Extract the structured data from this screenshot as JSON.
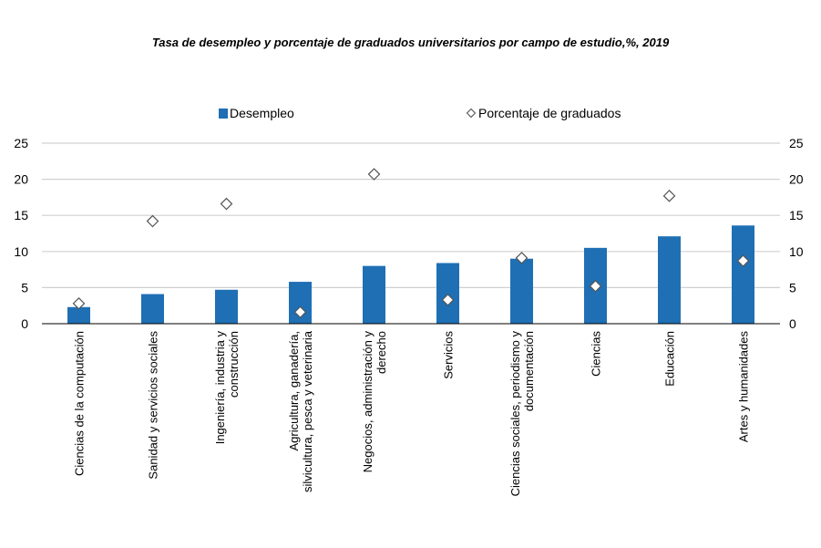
{
  "chart_data": {
    "type": "bar",
    "title": "Tasa de desempleo y porcentaje de graduados universitarios por campo de estudio,%, 2019",
    "categories": [
      [
        "Ciencias de la computación"
      ],
      [
        "Sanidad y servicios sociales"
      ],
      [
        "Ingeniería, industria y",
        "construcción"
      ],
      [
        "Agricultura, ganadería,",
        "silvicultura, pesca y veterinaria"
      ],
      [
        "Negocios, administración y",
        "derecho"
      ],
      [
        "Servicios"
      ],
      [
        "Ciencias sociales, periodismo y",
        "documentación"
      ],
      [
        "Ciencias"
      ],
      [
        "Educación"
      ],
      [
        "Artes y humanidades"
      ]
    ],
    "series": [
      {
        "name": "Desempleo",
        "kind": "bar",
        "color": "#1f6fb4",
        "values": [
          2.3,
          4.1,
          4.7,
          5.8,
          8.0,
          8.4,
          9.0,
          10.5,
          12.1,
          13.6
        ]
      },
      {
        "name": "Porcentaje de graduados",
        "kind": "diamond",
        "color": "#ffffff",
        "values": [
          2.8,
          14.2,
          16.6,
          1.6,
          20.7,
          3.3,
          9.1,
          5.2,
          17.7,
          8.7
        ]
      }
    ],
    "ylim": [
      0,
      25
    ],
    "yticks": [
      0,
      5,
      10,
      15,
      20,
      25
    ],
    "grid": true,
    "legend": "top-center"
  }
}
